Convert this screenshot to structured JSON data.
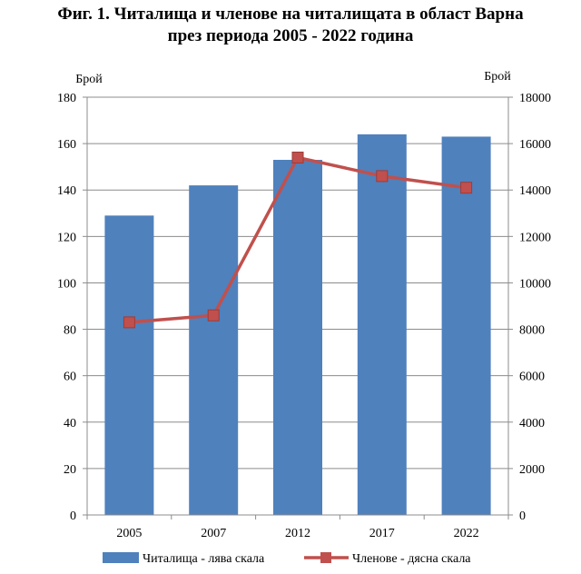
{
  "chart_data": {
    "type": "bar",
    "title": [
      "Фиг. 1. Читалища и членове на читалищата в област Варна",
      "през периода 2005 - 2022 година"
    ],
    "categories": [
      "2005",
      "2007",
      "2012",
      "2017",
      "2022"
    ],
    "ylabel_left": "Брой",
    "ylabel_right": "Брой",
    "ylim_left": [
      0,
      180
    ],
    "yticks_left": [
      "0",
      "20",
      "40",
      "60",
      "80",
      "100",
      "120",
      "140",
      "160",
      "180"
    ],
    "ylim_right": [
      0,
      18000
    ],
    "yticks_right": [
      "0",
      "2000",
      "4000",
      "6000",
      "8000",
      "10000",
      "12000",
      "14000",
      "16000",
      "18000"
    ],
    "grid": true,
    "legend_position": "bottom",
    "series": [
      {
        "name": "Читалища - лява скала",
        "type": "bar",
        "axis": "left",
        "color": "#4f81bd",
        "values": [
          129,
          142,
          153,
          164,
          163
        ]
      },
      {
        "name": "Членове - дясна скала",
        "type": "line",
        "axis": "right",
        "color": "#c0504d",
        "marker": "square",
        "values": [
          8300,
          8600,
          15400,
          14600,
          14100
        ]
      }
    ]
  }
}
